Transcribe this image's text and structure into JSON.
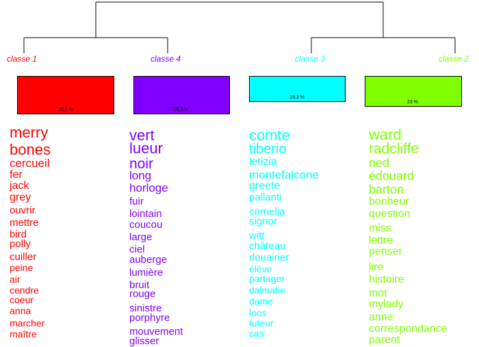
{
  "clusters": [
    {
      "label": "classe  1",
      "percent": "26,6 %",
      "color": "#ff0000",
      "words": [
        "merry",
        "bones",
        "cercueil",
        "fer",
        "jack",
        "grey",
        "ouvrir",
        "mettre",
        "bird",
        "polly",
        "cuiller",
        "peine",
        "air",
        "cendre",
        "coeur",
        "anna",
        "marcher",
        "maître"
      ]
    },
    {
      "label": "classe  4",
      "percent": "26,9 %",
      "color": "#7f00ff",
      "words": [
        "vert",
        "lueur",
        "noir",
        "long",
        "horloge",
        "fuir",
        "lointain",
        "coucou",
        "large",
        "ciel",
        "auberge",
        "lumière",
        "bruit",
        "rouge",
        "sinistre",
        "porphyre",
        "mouvement",
        "glisser"
      ]
    },
    {
      "label": "classe  3",
      "percent": "19,3 %",
      "color": "#00ffff",
      "words": [
        "comte",
        "tiberio",
        "letizia",
        "montefalcone",
        "greete",
        "pallanti",
        "cornelia",
        "signor",
        "witt",
        "château",
        "douairier",
        "élève",
        "partager",
        "dalmatie",
        "dame",
        "loos",
        "tuteur",
        "cas"
      ]
    },
    {
      "label": "classe  2",
      "percent": "23 %",
      "color": "#80ff00",
      "words": [
        "ward",
        "radcliffe",
        "ned",
        "édouard",
        "barton",
        "bonheur",
        "question",
        "miss",
        "lettre",
        "penser",
        "lire",
        "histoire",
        "mot",
        "mylady",
        "anne",
        "correspondance",
        "parent"
      ]
    }
  ]
}
